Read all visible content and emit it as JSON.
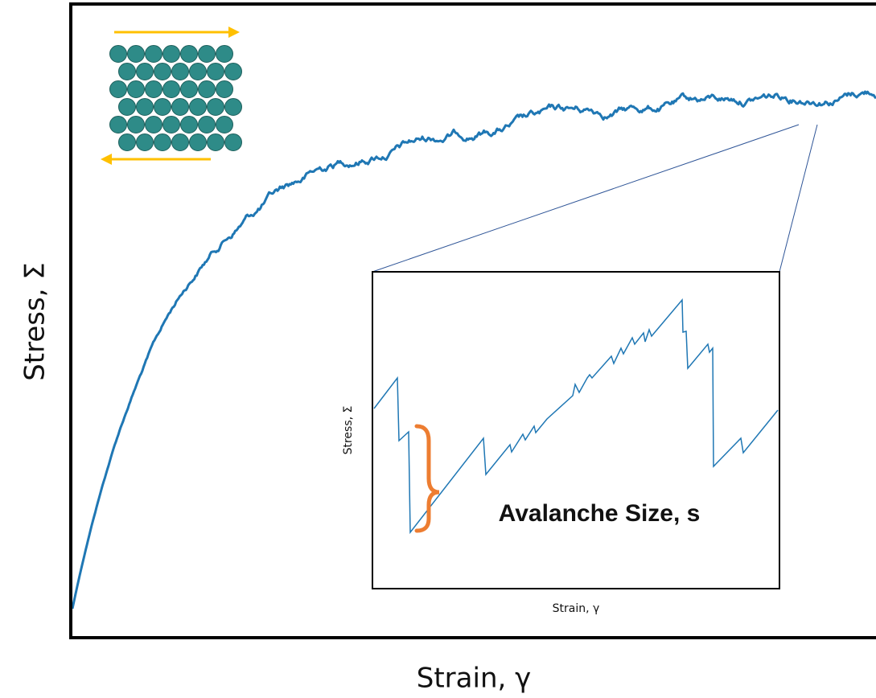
{
  "main": {
    "x_label": "Strain, γ",
    "y_label": "Stress, Σ"
  },
  "inset": {
    "x_label": "Strain, γ",
    "y_label": "Stress, Σ",
    "annotation": "Avalanche Size, s"
  }
}
